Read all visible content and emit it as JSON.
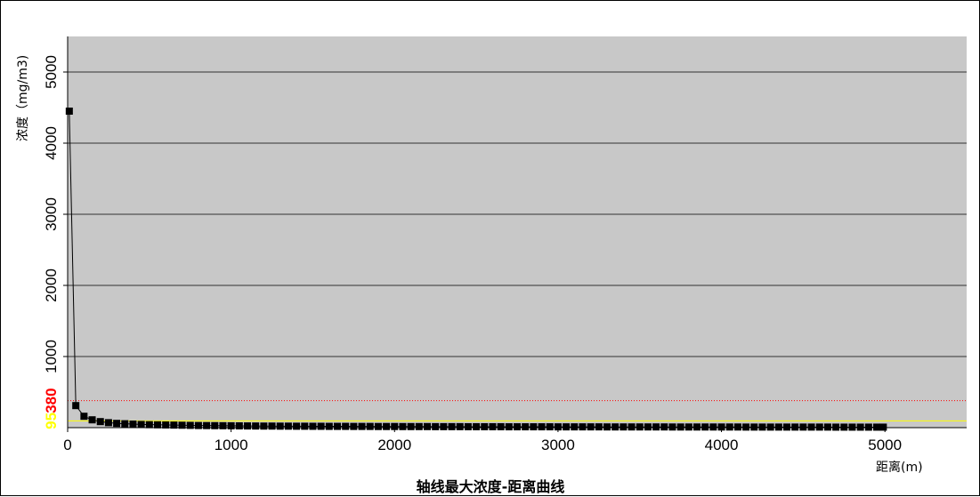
{
  "chart_data": {
    "type": "line",
    "title": "轴线最大浓度-距离曲线",
    "xlabel": "距离(m)",
    "ylabel": "浓度（mg/m3)",
    "xlim": [
      0,
      5500
    ],
    "ylim": [
      0,
      5500
    ],
    "x_ticks": [
      "0",
      "1000",
      "2000",
      "3000",
      "4000",
      "5000"
    ],
    "y_ticks": [
      "1000",
      "2000",
      "3000",
      "4000",
      "5000"
    ],
    "grid": "horizontal",
    "plot_background": "#c8c8c8",
    "series": [
      {
        "color": "#000000",
        "marker": "square",
        "x": [
          10,
          50,
          100,
          150,
          200,
          250,
          300,
          350,
          400,
          450,
          500,
          550,
          600,
          650,
          700,
          750,
          800,
          850,
          900,
          950,
          1000,
          1050,
          1100,
          1150,
          1200,
          1250,
          1300,
          1350,
          1400,
          1450,
          1500,
          1550,
          1600,
          1650,
          1700,
          1750,
          1800,
          1850,
          1900,
          1950,
          2000,
          2050,
          2100,
          2150,
          2200,
          2250,
          2300,
          2350,
          2400,
          2450,
          2500,
          2550,
          2600,
          2650,
          2700,
          2750,
          2800,
          2850,
          2900,
          2950,
          3000,
          3050,
          3100,
          3150,
          3200,
          3250,
          3300,
          3350,
          3400,
          3450,
          3500,
          3550,
          3600,
          3650,
          3700,
          3750,
          3800,
          3850,
          3900,
          3950,
          4000,
          4050,
          4100,
          4150,
          4200,
          4250,
          4300,
          4350,
          4400,
          4450,
          4500,
          4550,
          4600,
          4650,
          4700,
          4750,
          4800,
          4850,
          4900,
          4950,
          4990
        ],
        "y": [
          4450,
          310,
          160,
          110,
          85,
          70,
          60,
          55,
          50,
          45,
          42,
          40,
          38,
          36,
          34,
          32,
          30,
          29,
          28,
          27,
          26,
          25,
          24,
          23,
          22,
          22,
          21,
          21,
          20,
          20,
          19,
          19,
          18,
          18,
          18,
          17,
          17,
          17,
          16,
          16,
          16,
          15,
          15,
          15,
          15,
          14,
          14,
          14,
          14,
          13,
          13,
          13,
          13,
          13,
          12,
          12,
          12,
          12,
          12,
          12,
          11,
          11,
          11,
          11,
          11,
          11,
          10,
          10,
          10,
          10,
          10,
          10,
          10,
          10,
          9,
          9,
          9,
          9,
          9,
          9,
          9,
          9,
          9,
          8,
          8,
          8,
          8,
          8,
          8,
          8,
          8,
          8,
          8,
          8,
          7,
          7,
          7,
          7,
          7,
          7,
          7
        ]
      }
    ],
    "thresholds": [
      {
        "value": 380,
        "label": "380",
        "color": "#ff0000",
        "style": "dotted"
      },
      {
        "value": 95,
        "label": "95",
        "color": "#ffff00",
        "style": "solid"
      }
    ]
  }
}
